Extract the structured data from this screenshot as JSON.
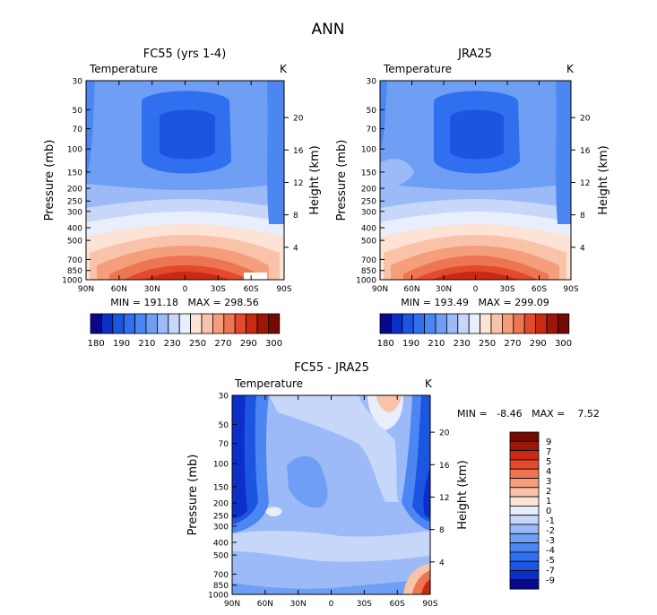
{
  "page": {
    "title": "ANN"
  },
  "palettes": {
    "abs": [
      "#08088a",
      "#0c2fc8",
      "#1b55e0",
      "#2f6ff0",
      "#4b86f2",
      "#6f9ff4",
      "#9bbaf7",
      "#c7d7fa",
      "#e9eefc",
      "#fde3d6",
      "#f9c3a9",
      "#f59e7c",
      "#ee7552",
      "#e2492d",
      "#c92a13",
      "#9e1608",
      "#750a03"
    ],
    "diff": [
      "#08088a",
      "#0c2fc8",
      "#1b55e0",
      "#2f6ff0",
      "#4b86f2",
      "#6f9ff4",
      "#9bbaf7",
      "#c7d7fa",
      "#e9eefc",
      "#fde3d6",
      "#f9c3a9",
      "#f59e7c",
      "#ee7552",
      "#e2492d",
      "#c92a13",
      "#9e1608",
      "#750a03"
    ]
  },
  "chart_data": [
    {
      "type": "heatmap",
      "title": "FC55 (yrs 1-4)",
      "field_label": "Temperature",
      "unit": "K",
      "ylabel": "Pressure (mb)",
      "y2label": "Height (km)",
      "x_ticks": [
        "90N",
        "60N",
        "30N",
        "0",
        "30S",
        "60S",
        "90S"
      ],
      "x_values": [
        90,
        60,
        30,
        0,
        -30,
        -60,
        -90
      ],
      "pressure_ticks": [
        "30",
        "50",
        "70",
        "100",
        "150",
        "200",
        "250",
        "300",
        "400",
        "500",
        "700",
        "850",
        "1000"
      ],
      "pressure_values": [
        30,
        50,
        70,
        100,
        150,
        200,
        250,
        300,
        400,
        500,
        700,
        850,
        1000
      ],
      "pressure_range": [
        30,
        1000
      ],
      "y_scale": "log",
      "height_ticks": [
        "4",
        "8",
        "12",
        "16",
        "20"
      ],
      "height_values": [
        4,
        8,
        12,
        16,
        20
      ],
      "stats": {
        "min": "191.18",
        "max": "298.56",
        "text": "MIN = 191.18   MAX = 298.56"
      },
      "colorbar_labels": [
        "180",
        "190",
        "210",
        "230",
        "250",
        "270",
        "290",
        "300"
      ],
      "palette": "abs"
    },
    {
      "type": "heatmap",
      "title": "JRA25",
      "field_label": "Temperature",
      "unit": "K",
      "ylabel": "Pressure (mb)",
      "y2label": "Height (km)",
      "x_ticks": [
        "90N",
        "60N",
        "30N",
        "0",
        "30S",
        "60S",
        "90S"
      ],
      "x_values": [
        90,
        60,
        30,
        0,
        -30,
        -60,
        -90
      ],
      "pressure_ticks": [
        "30",
        "50",
        "70",
        "100",
        "150",
        "200",
        "250",
        "300",
        "400",
        "500",
        "700",
        "850",
        "1000"
      ],
      "pressure_values": [
        30,
        50,
        70,
        100,
        150,
        200,
        250,
        300,
        400,
        500,
        700,
        850,
        1000
      ],
      "pressure_range": [
        30,
        1000
      ],
      "y_scale": "log",
      "height_ticks": [
        "4",
        "8",
        "12",
        "16",
        "20"
      ],
      "height_values": [
        4,
        8,
        12,
        16,
        20
      ],
      "stats": {
        "min": "193.49",
        "max": "299.09",
        "text": "MIN = 193.49   MAX = 299.09"
      },
      "colorbar_labels": [
        "180",
        "190",
        "210",
        "230",
        "250",
        "270",
        "290",
        "300"
      ],
      "palette": "abs"
    },
    {
      "type": "heatmap",
      "title": "FC55 - JRA25",
      "field_label": "Temperature",
      "unit": "K",
      "ylabel": "Pressure (mb)",
      "y2label": "Height (km)",
      "x_ticks": [
        "90N",
        "60N",
        "30N",
        "0",
        "30S",
        "60S",
        "90S"
      ],
      "x_values": [
        90,
        60,
        30,
        0,
        -30,
        -60,
        -90
      ],
      "pressure_ticks": [
        "30",
        "50",
        "70",
        "100",
        "150",
        "200",
        "250",
        "300",
        "400",
        "500",
        "700",
        "850",
        "1000"
      ],
      "pressure_values": [
        30,
        50,
        70,
        100,
        150,
        200,
        250,
        300,
        400,
        500,
        700,
        850,
        1000
      ],
      "pressure_range": [
        30,
        1000
      ],
      "y_scale": "log",
      "height_ticks": [
        "4",
        "8",
        "12",
        "16",
        "20"
      ],
      "height_values": [
        4,
        8,
        12,
        16,
        20
      ],
      "stats": {
        "min": "-8.46",
        "max": "7.52",
        "text": "MIN =   -8.46   MAX =    7.52"
      },
      "colorbar_labels": [
        "9",
        "7",
        "5",
        "4",
        "3",
        "2",
        "1",
        "0",
        "-1",
        "-2",
        "-3",
        "-4",
        "-5",
        "-7",
        "-9"
      ],
      "palette": "diff"
    }
  ]
}
